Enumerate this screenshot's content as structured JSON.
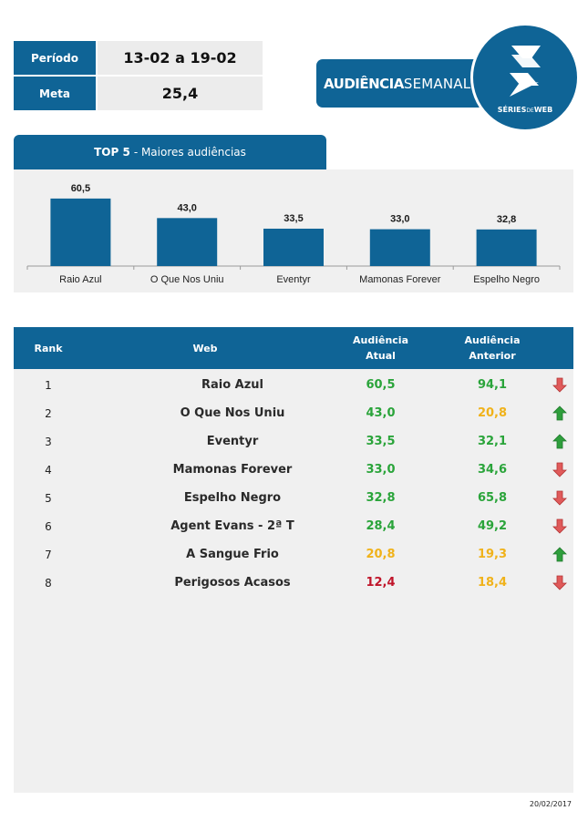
{
  "info": {
    "period_label": "Período",
    "period_value": "13-02 a 19-02",
    "goal_label": "Meta",
    "goal_value": "25,4"
  },
  "brand": {
    "banner_bold": "AUDIÊNCIA",
    "banner_light": "SEMANAL",
    "logo_text_bold": "SÉRIES",
    "logo_text_small": "DE",
    "logo_text_end": "WEB",
    "logo_icon": "s-logo-icon"
  },
  "top5": {
    "tab_bold": "TOP 5",
    "tab_rest": "- Maiores audiências"
  },
  "chart_data": {
    "type": "bar",
    "title": "TOP 5 - Maiores audiências",
    "categories": [
      "Raio Azul",
      "O Que Nos Uniu",
      "Eventyr",
      "Mamonas Forever",
      "Espelho Negro"
    ],
    "values": [
      60.5,
      43.0,
      33.5,
      33.0,
      32.8
    ],
    "value_labels": [
      "60,5",
      "43,0",
      "33,5",
      "33,0",
      "32,8"
    ],
    "ylim": [
      0,
      80
    ],
    "grid": false,
    "bar_color": "#0f6496"
  },
  "table": {
    "headers": {
      "rank": "Rank",
      "web": "Web",
      "current_line1": "Audiência",
      "current_line2": "Atual",
      "previous_line1": "Audiência",
      "previous_line2": "Anterior"
    },
    "rows": [
      {
        "rank": "1",
        "web": "Raio Azul",
        "current": "60,5",
        "current_color": "#2aa43a",
        "previous": "94,1",
        "previous_color": "#2aa43a",
        "trend": "down"
      },
      {
        "rank": "2",
        "web": "O Que Nos Uniu",
        "current": "43,0",
        "current_color": "#2aa43a",
        "previous": "20,8",
        "previous_color": "#f0b21a",
        "trend": "up"
      },
      {
        "rank": "3",
        "web": "Eventyr",
        "current": "33,5",
        "current_color": "#2aa43a",
        "previous": "32,1",
        "previous_color": "#2aa43a",
        "trend": "up"
      },
      {
        "rank": "4",
        "web": "Mamonas Forever",
        "current": "33,0",
        "current_color": "#2aa43a",
        "previous": "34,6",
        "previous_color": "#2aa43a",
        "trend": "down"
      },
      {
        "rank": "5",
        "web": "Espelho Negro",
        "current": "32,8",
        "current_color": "#2aa43a",
        "previous": "65,8",
        "previous_color": "#2aa43a",
        "trend": "down"
      },
      {
        "rank": "6",
        "web": "Agent Evans - 2ª T",
        "current": "28,4",
        "current_color": "#2aa43a",
        "previous": "49,2",
        "previous_color": "#2aa43a",
        "trend": "down"
      },
      {
        "rank": "7",
        "web": "A Sangue Frio",
        "current": "20,8",
        "current_color": "#f0b21a",
        "previous": "19,3",
        "previous_color": "#f0b21a",
        "trend": "up"
      },
      {
        "rank": "8",
        "web": "Perigosos Acasos",
        "current": "12,4",
        "current_color": "#c0152a",
        "previous": "18,4",
        "previous_color": "#f0b21a",
        "trend": "down"
      }
    ]
  },
  "colors": {
    "primary": "#0f6496",
    "panel": "#f0f0f0",
    "up_arrow": "#2e9e3c",
    "down_arrow": "#e05a5a"
  },
  "footer": {
    "date": "20/02/2017"
  }
}
